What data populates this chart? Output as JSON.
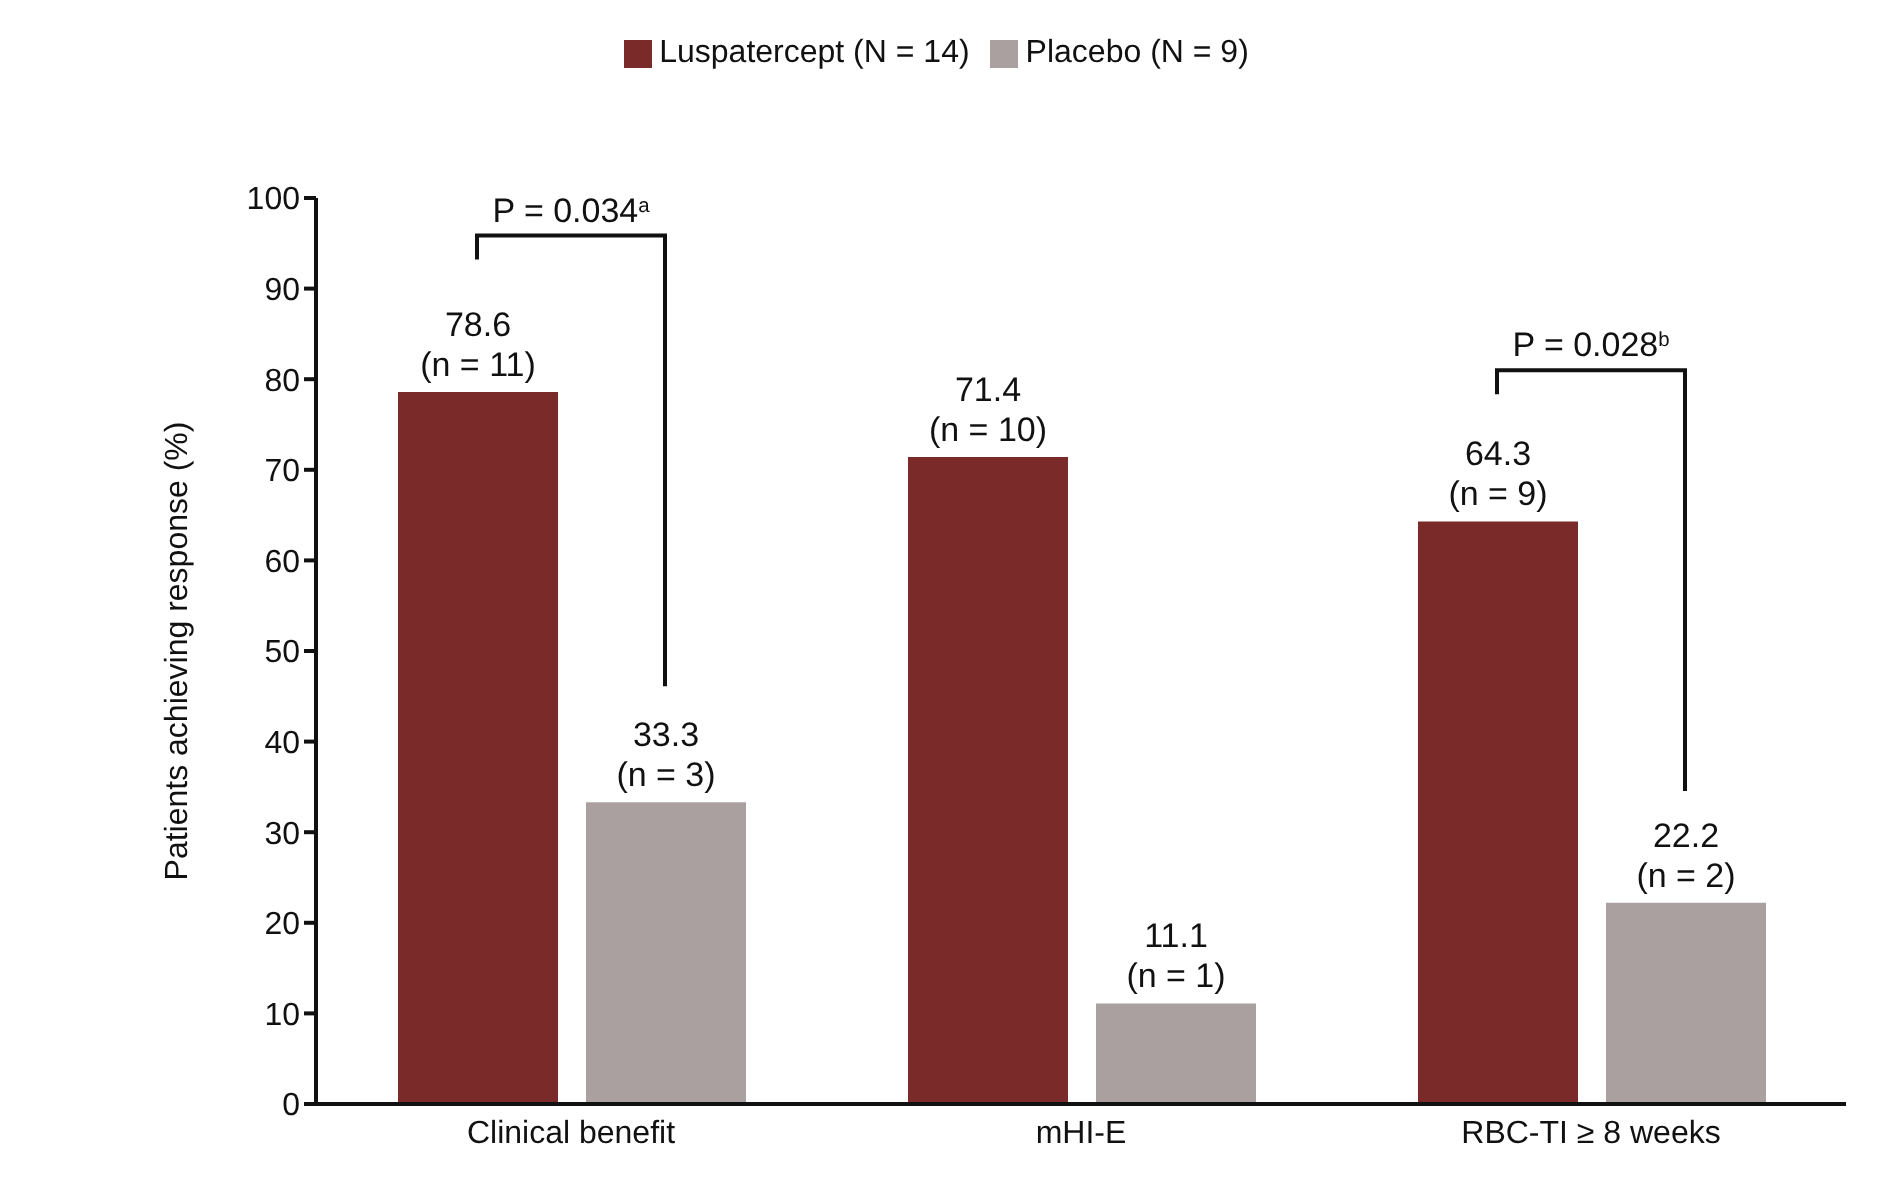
{
  "chart_data": {
    "type": "bar",
    "ylabel": "Patients achieving response (%)",
    "categories": [
      "Clinical benefit",
      "mHI-E",
      "RBC-TI ≥ 8 weeks"
    ],
    "series": [
      {
        "name": "Luspatercept (N = 14)",
        "color": "#7b2a2a",
        "values": [
          78.6,
          71.4,
          64.3
        ],
        "value_labels": [
          "78.6\n(n = 11)",
          "71.4\n(n = 10)",
          "64.3\n(n = 9)"
        ]
      },
      {
        "name": "Placebo (N = 9)",
        "color": "#a9a09f",
        "values": [
          33.3,
          11.1,
          22.2
        ],
        "value_labels": [
          "33.3\n(n = 3)",
          "11.1\n(n = 1)",
          "22.2\n(n = 2)"
        ]
      }
    ],
    "annotations": [
      "P = 0.034$^{a}$",
      "P = 0.028$^{b}$"
    ],
    "ylim": [
      0,
      100
    ],
    "yticks": [
      0,
      10,
      20,
      30,
      40,
      50,
      60,
      70,
      80,
      90,
      100
    ],
    "grid": false,
    "legend": "top"
  }
}
